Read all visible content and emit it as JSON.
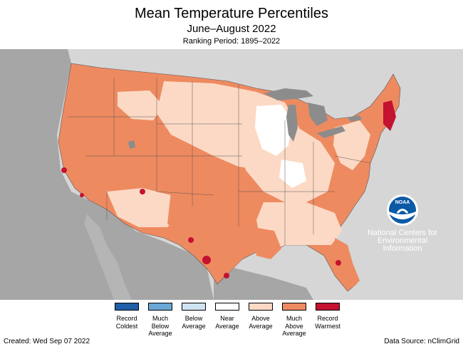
{
  "header": {
    "title": "Mean Temperature Percentiles",
    "subtitle": "June–August 2022",
    "period": "Ranking Period: 1895–2022"
  },
  "colors": {
    "land_outside": "#a6a6a6",
    "ocean": "#d6d6d6",
    "lakes": "#8c8c8c",
    "record_coldest": "#1f5fa8",
    "much_below_average": "#6aa8d6",
    "below_average": "#cfe3f1",
    "near_average": "#ffffff",
    "above_average": "#fcd9c5",
    "much_above_average": "#ee8a60",
    "record_warmest": "#c41230"
  },
  "legend": {
    "items": [
      {
        "label": "Record\nColdest",
        "color": "#1f5fa8"
      },
      {
        "label": "Much\nBelow\nAverage",
        "color": "#6aa8d6"
      },
      {
        "label": "Below\nAverage",
        "color": "#cfe3f1"
      },
      {
        "label": "Near\nAverage",
        "color": "#ffffff"
      },
      {
        "label": "Above\nAverage",
        "color": "#fcd9c5"
      },
      {
        "label": "Much\nAbove\nAverage",
        "color": "#ee8a60"
      },
      {
        "label": "Record\nWarmest",
        "color": "#c41230"
      }
    ]
  },
  "logo": {
    "icon": "noaa-logo-icon",
    "text": "NOAA",
    "lines": [
      "National Centers for",
      "Environmental",
      "Information"
    ]
  },
  "footer": {
    "created": "Created: Wed Sep 07 2022",
    "source": "Data Source: nClimGrid"
  }
}
